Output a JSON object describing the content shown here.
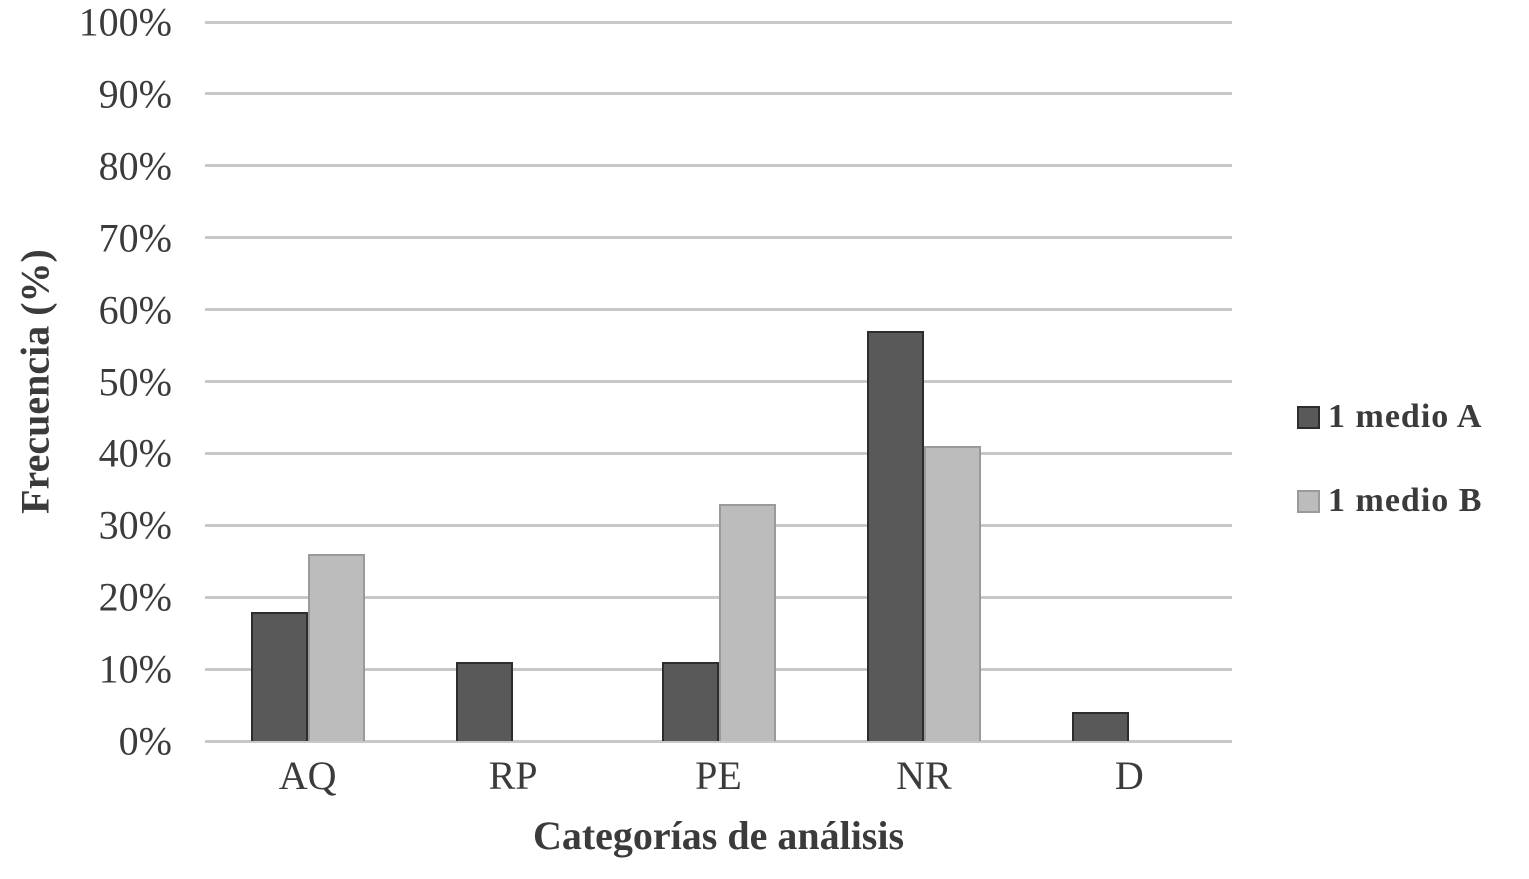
{
  "chart_data": {
    "type": "bar",
    "xlabel": "Categorías de análisis",
    "ylabel": "Frecuencia (%)",
    "categories": [
      "AQ",
      "RP",
      "PE",
      "NR",
      "D"
    ],
    "series": [
      {
        "name": "1 medio A",
        "color": "#595959",
        "border_color": "#2d2d2d",
        "values": [
          18,
          11,
          11,
          57,
          4
        ]
      },
      {
        "name": "1 medio B",
        "color": "#bcbcbc",
        "border_color": "#9a9a9a",
        "values": [
          26,
          0,
          33,
          41,
          0
        ]
      }
    ],
    "y_tick_labels": [
      "0%",
      "10%",
      "20%",
      "30%",
      "40%",
      "50%",
      "60%",
      "70%",
      "80%",
      "90%",
      "100%"
    ],
    "y_tick_values": [
      0,
      10,
      20,
      30,
      40,
      50,
      60,
      70,
      80,
      90,
      100
    ],
    "ylim": [
      0,
      100
    ],
    "grid": "horizontal",
    "gridline_color": "#c8c8c8",
    "legend_position": "right",
    "text_color": "#3b3b3b",
    "background": "#ffffff"
  }
}
